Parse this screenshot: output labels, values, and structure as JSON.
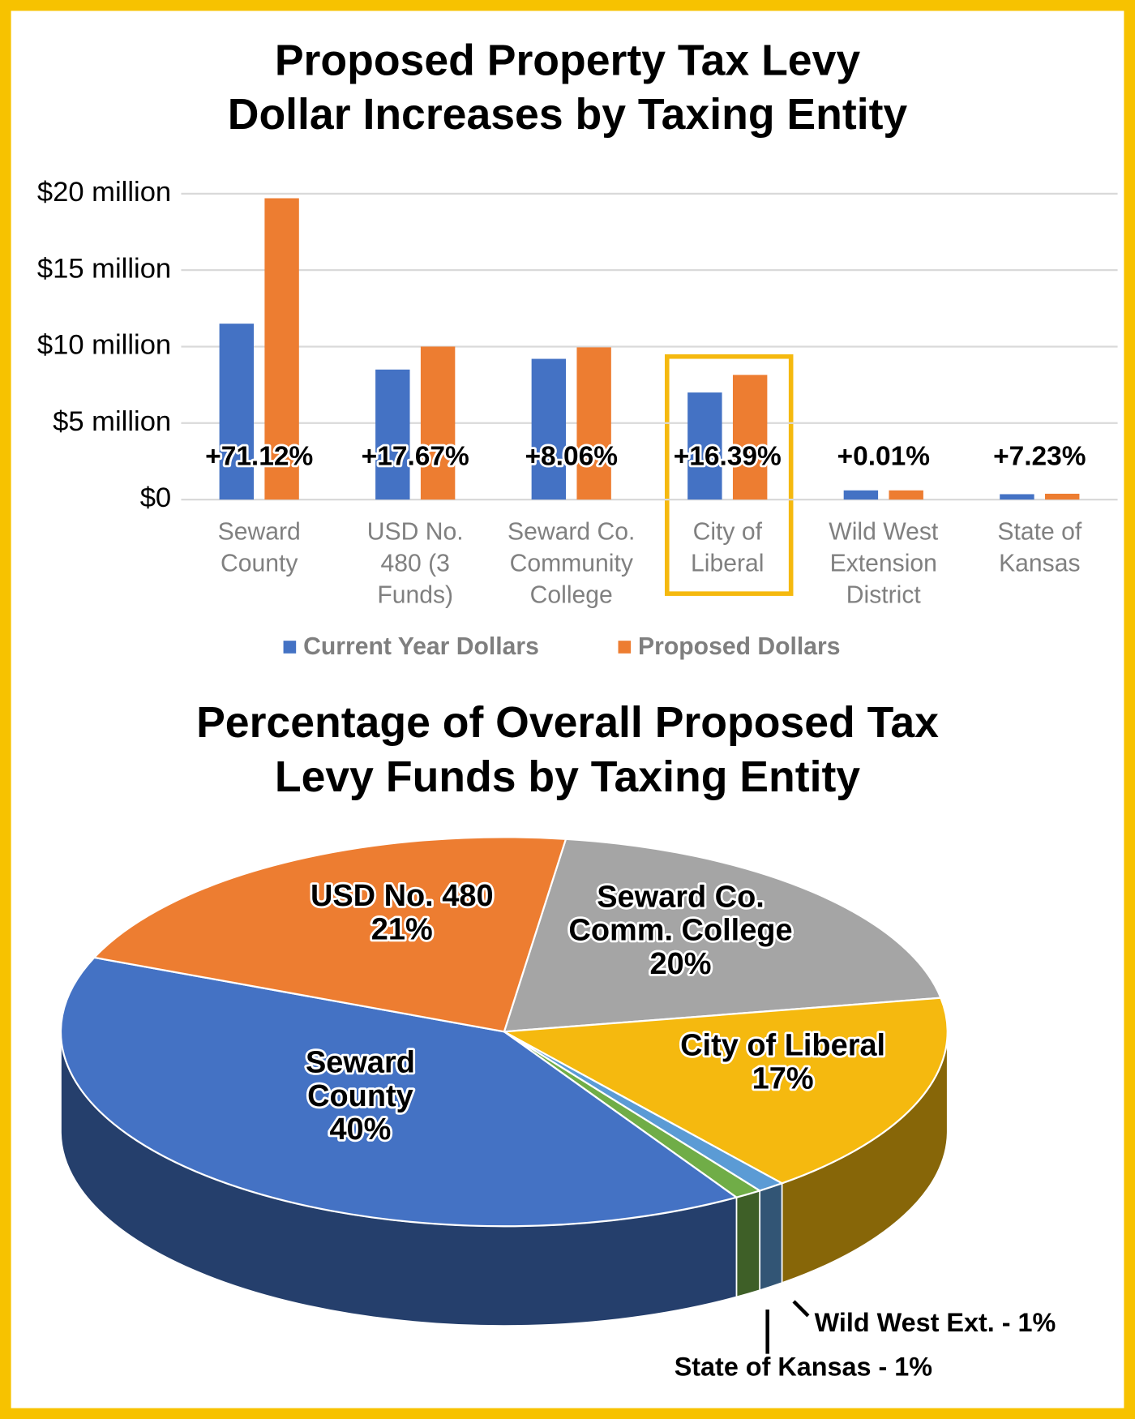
{
  "chart_data": [
    {
      "type": "bar",
      "title": [
        "Proposed Property Tax Levy",
        "Dollar Increases by Taxing Entity"
      ],
      "categories": [
        "Seward County",
        "USD No. 480 (3 Funds)",
        "Seward Co. Community College",
        "City of Liberal",
        "Wild West Extension District",
        "State of Kansas"
      ],
      "series": [
        {
          "name": "Current Year Dollars",
          "color": "#4472c4",
          "values": [
            11.5,
            8.5,
            9.2,
            7.0,
            0.6,
            0.35
          ]
        },
        {
          "name": "Proposed Dollars",
          "color": "#ed7d31",
          "values": [
            19.7,
            10.0,
            9.95,
            8.15,
            0.6,
            0.38
          ]
        }
      ],
      "annotations": [
        "+71.12%",
        "+17.67%",
        "+8.06%",
        "+16.39%",
        "+0.01%",
        "+7.23%"
      ],
      "ylim": [
        0,
        20
      ],
      "yticks": [
        {
          "value": 0,
          "label": "$0"
        },
        {
          "value": 5,
          "label": "$5 million"
        },
        {
          "value": 10,
          "label": "$10 million"
        },
        {
          "value": 15,
          "label": "$15 million"
        },
        {
          "value": 20,
          "label": "$20 million"
        }
      ],
      "grid": true,
      "legend": "bottom"
    },
    {
      "type": "pie",
      "title": [
        "Percentage of Overall Proposed Tax",
        "Levy Funds by Taxing Entity"
      ],
      "categories": [
        "Seward Co. Comm. College",
        "City of Liberal",
        "Wild West Ext.",
        "State of Kansas",
        "Seward County",
        "USD No. 480"
      ],
      "values": [
        20,
        17,
        1,
        1,
        40,
        21
      ],
      "value_labels": [
        "20%",
        "17%",
        "1%",
        "1%",
        "40%",
        "21%"
      ],
      "colors": [
        "#a5a5a5",
        "#f5b90f",
        "#5b9bd5",
        "#70ad47",
        "#4472c4",
        "#ed7d31"
      ],
      "label_separator": " - "
    }
  ]
}
